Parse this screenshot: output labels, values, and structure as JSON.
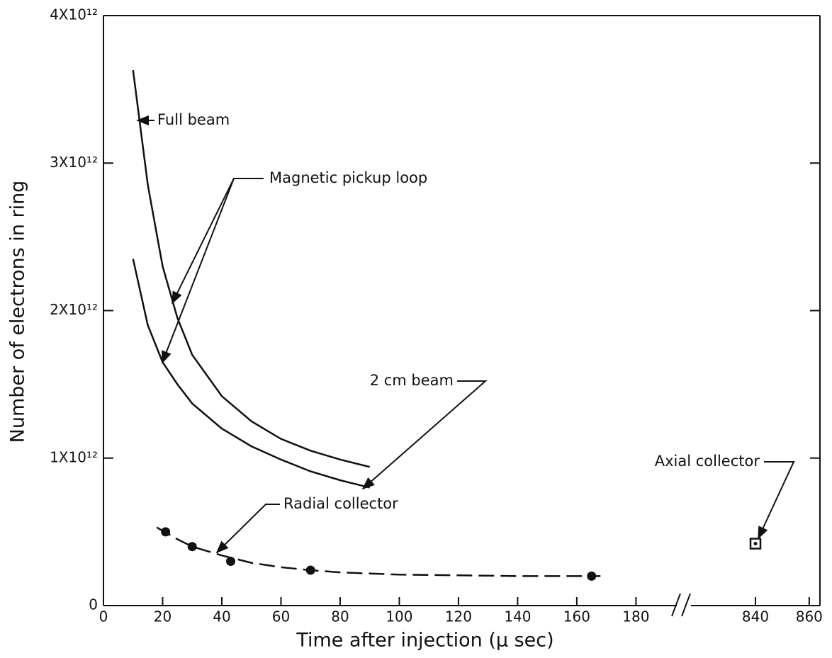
{
  "chart_data": {
    "type": "line",
    "x_label": "Time after injection (μ sec)",
    "y_label": "Number of electrons in ring",
    "xlim": [
      0,
      195
    ],
    "xticks": [
      0,
      20,
      40,
      60,
      80,
      100,
      120,
      140,
      160,
      180
    ],
    "x2lim": [
      816,
      864
    ],
    "x2ticks": [
      840,
      860
    ],
    "ylim": [
      0,
      4000000000000
    ],
    "yticks": [
      0,
      {
        "value": 1000000000000,
        "label": "1X10¹²"
      },
      {
        "value": 2000000000000,
        "label": "2X10¹²"
      },
      {
        "value": 3000000000000,
        "label": "3X10¹²"
      },
      {
        "value": 4000000000000,
        "label": "4X10¹²"
      }
    ],
    "color": "#111111",
    "series": [
      {
        "style": "solid",
        "x": [
          10,
          15,
          20,
          25,
          30,
          40,
          50,
          60,
          70,
          80,
          90
        ],
        "values": [
          3630000000000,
          2850000000000,
          2300000000000,
          1950000000000,
          1700000000000,
          1420000000000,
          1250000000000,
          1130000000000,
          1050000000000,
          990000000000,
          940000000000
        ]
      },
      {
        "style": "solid",
        "x": [
          10,
          15,
          20,
          25,
          30,
          40,
          50,
          60,
          70,
          80,
          90
        ],
        "values": [
          2350000000000,
          1900000000000,
          1650000000000,
          1500000000000,
          1370000000000,
          1200000000000,
          1080000000000,
          990000000000,
          910000000000,
          850000000000,
          800000000000
        ]
      },
      {
        "style": "dashed",
        "x": [
          18,
          25,
          30,
          40,
          50,
          60,
          70,
          80,
          100,
          120,
          140,
          168
        ],
        "values": [
          530000000000,
          450000000000,
          400000000000,
          340000000000,
          290000000000,
          260000000000,
          240000000000,
          225000000000,
          210000000000,
          205000000000,
          200000000000,
          200000000000
        ]
      },
      {
        "style": "points",
        "marker": "circle",
        "x": [
          21,
          30,
          43,
          70,
          165
        ],
        "values": [
          500000000000,
          400000000000,
          300000000000,
          240000000000,
          200000000000
        ]
      },
      {
        "style": "points",
        "marker": "square",
        "axis": "x2",
        "x": [
          840
        ],
        "values": [
          420000000000
        ]
      }
    ],
    "annotations": [
      "Full beam",
      "Magnetic pickup loop",
      "2 cm beam",
      "Radial collector",
      "Axial collector"
    ]
  }
}
